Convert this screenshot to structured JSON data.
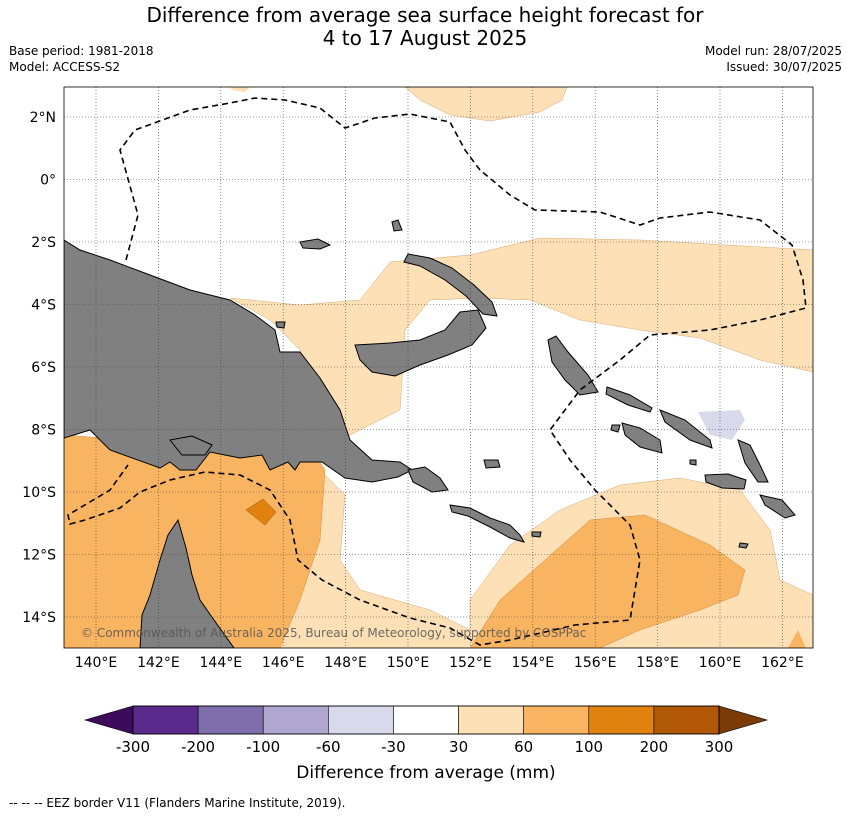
{
  "title": {
    "line1": "Difference from average sea surface height forecast for",
    "line2": "4 to 17 August 2025"
  },
  "meta": {
    "base_period": "Base period: 1981-2018",
    "model": "Model: ACCESS-S2",
    "model_run": "Model run: 28/07/2025",
    "issued": "Issued: 30/07/2025"
  },
  "map": {
    "lat_labels": [
      "2°N",
      "0°",
      "2°S",
      "4°S",
      "6°S",
      "8°S",
      "10°S",
      "12°S",
      "14°S"
    ],
    "lon_labels": [
      "140°E",
      "142°E",
      "144°E",
      "146°E",
      "148°E",
      "150°E",
      "152°E",
      "154°E",
      "156°E",
      "158°E",
      "160°E",
      "162°E"
    ],
    "copyright": "© Commonwealth of Australia 2025, Bureau of Meteorology, supported by COSPPac"
  },
  "colorbar": {
    "ticks": [
      "-300",
      "-200",
      "-100",
      "-60",
      "-30",
      "30",
      "60",
      "100",
      "200",
      "300"
    ],
    "colors": [
      "#3d0a5c",
      "#5a2a8c",
      "#7f6eab",
      "#afa7cf",
      "#d8d9ea",
      "#ffffff",
      "#fde0b6",
      "#f9b462",
      "#e0820f",
      "#b05806",
      "#7a3b07"
    ],
    "label": "Difference from average (mm)"
  },
  "legend_note": "--  --  -- EEZ border V11 (Flanders Marine Institute, 2019).",
  "colors": {
    "land": "#808080",
    "band_30_60": "#fde0b6",
    "band_60_100": "#f9b462",
    "band_100_200": "#e0820f",
    "band_neg": "#d8d9ea"
  }
}
